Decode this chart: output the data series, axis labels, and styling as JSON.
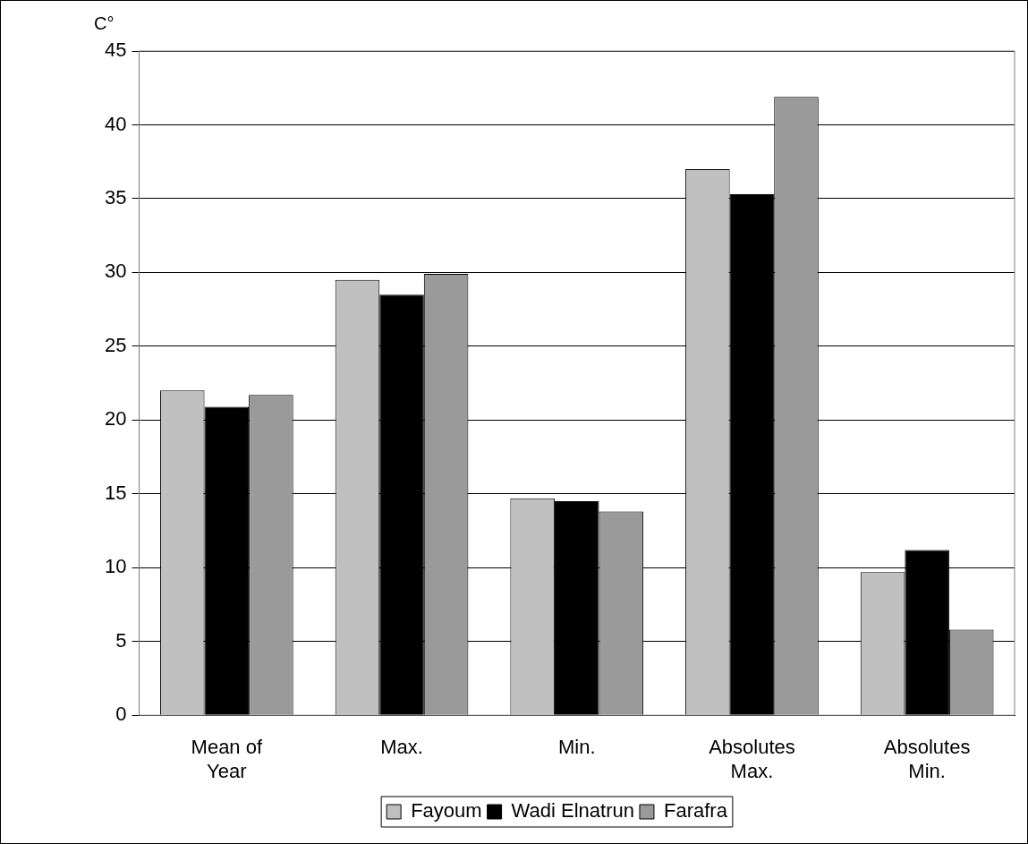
{
  "chart_data": {
    "type": "bar",
    "ylabel": "C°",
    "categories": [
      "Mean of Year",
      "Max.",
      "Min.",
      "Absolutes Max.",
      "Absolutes Min."
    ],
    "series": [
      {
        "name": "Fayoum",
        "color": "#c0c0c0",
        "values": [
          22.0,
          29.5,
          14.7,
          37.0,
          9.7
        ]
      },
      {
        "name": "Wadi Elnatrun",
        "color": "#000000",
        "values": [
          20.9,
          28.5,
          14.5,
          35.3,
          11.2
        ]
      },
      {
        "name": "Farafra",
        "color": "#9a9a9a",
        "values": [
          21.7,
          29.9,
          13.8,
          41.9,
          5.8
        ]
      }
    ],
    "ylim": [
      0,
      45
    ],
    "yticks": [
      0,
      5,
      10,
      15,
      20,
      25,
      30,
      35,
      40,
      45
    ],
    "grid": "y",
    "legend": "bottom"
  }
}
